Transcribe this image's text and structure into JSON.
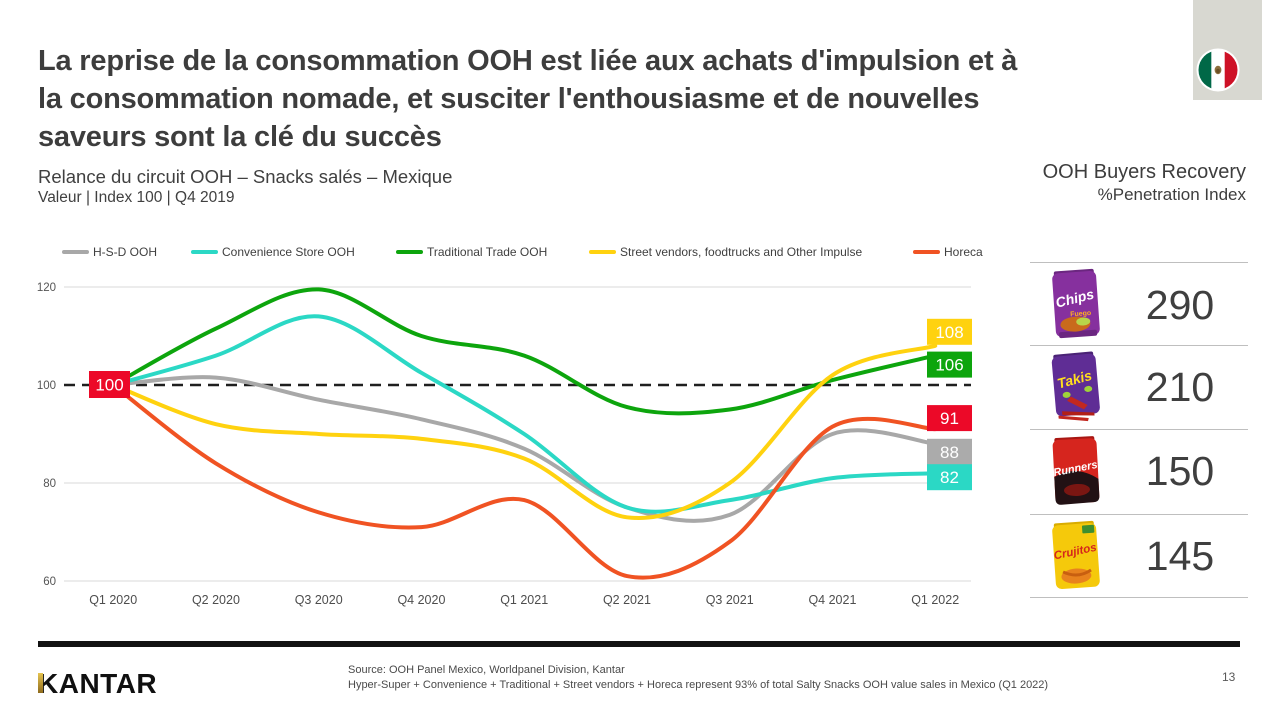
{
  "header": {
    "title_lines": [
      "La reprise de la consommation OOH est liée aux achats d'impulsion et à",
      "la consommation nomade, et susciter l'enthousiasme et de nouvelles",
      "saveurs sont la clé du succès"
    ],
    "subtitle": "Relance du circuit OOH – Snacks salés – Mexique",
    "subtitle2": "Valeur | Index 100 | Q4 2019"
  },
  "flag": {
    "country": "Mexico"
  },
  "chart_data": {
    "type": "line",
    "categories": [
      "Q1 2020",
      "Q2 2020",
      "Q3 2020",
      "Q4 2020",
      "Q1 2021",
      "Q2 2021",
      "Q3 2021",
      "Q4 2021",
      "Q1 2022"
    ],
    "series": [
      {
        "name": "H-S-D OOH",
        "color": "#A8A8A8",
        "label_bg": "#ABABAB",
        "end_label": "88",
        "values": [
          100,
          101.5,
          97,
          93,
          87,
          75,
          73.5,
          90,
          88
        ]
      },
      {
        "name": "Convenience Store OOH",
        "color": "#2BD8C5",
        "label_bg": "#2BD8C5",
        "end_label": "82",
        "values": [
          100,
          106,
          114,
          102.5,
          90,
          75,
          76.5,
          81,
          82
        ]
      },
      {
        "name": "Traditional Trade OOH",
        "color": "#0DA50D",
        "label_bg": "#0DA50D",
        "end_label": "106",
        "values": [
          100,
          111.5,
          119.5,
          110,
          106,
          95.5,
          95,
          101,
          106
        ]
      },
      {
        "name": "Street vendors, foodtrucks and Other Impulse",
        "color": "#FFD20F",
        "label_bg": "#FFD20F",
        "end_label": "108",
        "values": [
          100,
          92,
          90,
          89,
          85,
          73,
          80,
          102,
          108
        ]
      },
      {
        "name": "Horeca",
        "color": "#F05323",
        "label_bg": "#EC0928",
        "end_label": "91",
        "values": [
          100,
          84,
          74,
          71,
          76.5,
          61,
          68,
          91.5,
          91
        ]
      }
    ],
    "ylim": [
      60,
      120
    ],
    "yticks": [
      120,
      100,
      80,
      60
    ],
    "baseline": {
      "value": 100,
      "style": "dashed",
      "label": "100",
      "label_bg": "#EC0928"
    },
    "legend_position": "top",
    "grid": "horizontal"
  },
  "recovery_panel": {
    "title_line1": "OOH Buyers Recovery",
    "title_line2": "%Penetration Index",
    "items": [
      {
        "brand": "Chips",
        "value": "290"
      },
      {
        "brand": "Takis",
        "value": "210"
      },
      {
        "brand": "Runners",
        "value": "150"
      },
      {
        "brand": "Crujitos",
        "value": "145"
      }
    ]
  },
  "footer": {
    "logo": "KANTAR",
    "source_line1": "Source: OOH Panel Mexico, Worldpanel Division, Kantar",
    "source_line2": "Hyper-Super + Convenience + Traditional + Street vendors + Horeca represent 93% of total Salty Snacks OOH value sales in Mexico (Q1 2022)",
    "page_number": "13"
  }
}
